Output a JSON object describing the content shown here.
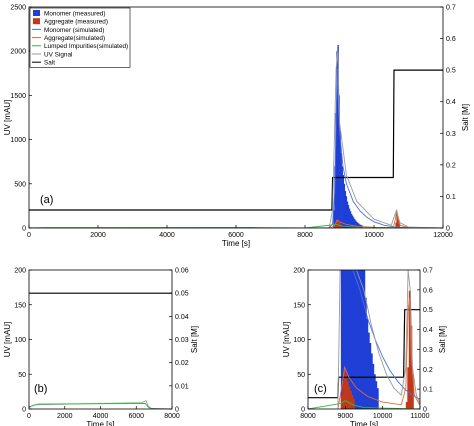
{
  "chart_data": [
    {
      "id": "a",
      "type": "line",
      "panel_label": "(a)",
      "xlabel": "Time [s]",
      "ylabel": "UV [mAU]",
      "y2label": "Salt [M]",
      "xlim": [
        0,
        12000
      ],
      "ylim": [
        0,
        2500
      ],
      "y2lim": [
        0,
        0.7
      ],
      "xticks": [
        0,
        2000,
        4000,
        6000,
        8000,
        10000,
        12000
      ],
      "yticks": [
        0,
        500,
        1000,
        1500,
        2000,
        2500
      ],
      "y2ticks": [
        0,
        0.1,
        0.2,
        0.3,
        0.4,
        0.5,
        0.6,
        0.7
      ],
      "legend": {
        "position": "top-left",
        "entries": [
          {
            "label": "Monomer (measured)",
            "color": "#1f3fd6",
            "style": "patch"
          },
          {
            "label": "Aggregate (measured)",
            "color": "#c0391b",
            "style": "patch"
          },
          {
            "label": "Monomer (simulated)",
            "color": "#4a6fe0",
            "style": "line"
          },
          {
            "label": "Aggregate(simulated)",
            "color": "#e06a3a",
            "style": "line"
          },
          {
            "label": "Lumped Impurities(simulated)",
            "color": "#39b54a",
            "style": "line"
          },
          {
            "label": "UV Signal",
            "color": "#9a9a9a",
            "style": "line"
          },
          {
            "label": "Salt",
            "color": "#000000",
            "style": "line"
          }
        ]
      },
      "bars_monomer": [
        [
          8820,
          200
        ],
        [
          8850,
          700
        ],
        [
          8880,
          1300
        ],
        [
          8910,
          2000
        ],
        [
          8940,
          2070
        ],
        [
          8970,
          1500
        ],
        [
          9000,
          1100
        ],
        [
          9030,
          850
        ],
        [
          9060,
          700
        ],
        [
          9090,
          600
        ],
        [
          9120,
          500
        ],
        [
          9150,
          420
        ],
        [
          9180,
          360
        ],
        [
          9210,
          300
        ],
        [
          9240,
          260
        ],
        [
          9270,
          220
        ],
        [
          9300,
          190
        ],
        [
          9330,
          160
        ],
        [
          9360,
          140
        ],
        [
          9390,
          120
        ],
        [
          9420,
          100
        ],
        [
          9450,
          85
        ],
        [
          9480,
          70
        ],
        [
          9510,
          60
        ],
        [
          9540,
          50
        ],
        [
          9570,
          40
        ],
        [
          9600,
          35
        ],
        [
          9630,
          30
        ]
      ],
      "bars_aggregate": [
        [
          8850,
          20
        ],
        [
          8880,
          50
        ],
        [
          8910,
          80
        ],
        [
          8940,
          90
        ],
        [
          8970,
          70
        ],
        [
          9000,
          50
        ],
        [
          9030,
          35
        ],
        [
          9060,
          25
        ],
        [
          10620,
          60
        ],
        [
          10650,
          170
        ],
        [
          10680,
          120
        ],
        [
          10710,
          50
        ]
      ],
      "series": [
        {
          "name": "Salt",
          "color": "#000000",
          "axis": "right",
          "points": [
            [
              0,
              0.057
            ],
            [
              8780,
              0.057
            ],
            [
              8800,
              0.16
            ],
            [
              10560,
              0.16
            ],
            [
              10580,
              0.5
            ],
            [
              12000,
              0.5
            ]
          ]
        },
        {
          "name": "Monomer (simulated)",
          "color": "#4a6fe0",
          "axis": "left",
          "points": [
            [
              8700,
              0
            ],
            [
              8800,
              50
            ],
            [
              8860,
              400
            ],
            [
              8900,
              1200
            ],
            [
              8930,
              1800
            ],
            [
              8960,
              1500
            ],
            [
              9000,
              1100
            ],
            [
              9100,
              700
            ],
            [
              9200,
              500
            ],
            [
              9400,
              300
            ],
            [
              9600,
              190
            ],
            [
              9800,
              120
            ],
            [
              10000,
              70
            ],
            [
              10300,
              30
            ],
            [
              10600,
              12
            ],
            [
              11000,
              3
            ],
            [
              12000,
              0
            ]
          ]
        },
        {
          "name": "Aggregate(simulated)",
          "color": "#e06a3a",
          "axis": "left",
          "points": [
            [
              8700,
              0
            ],
            [
              8850,
              20
            ],
            [
              8930,
              90
            ],
            [
              9000,
              70
            ],
            [
              9200,
              40
            ],
            [
              9500,
              20
            ],
            [
              10000,
              8
            ],
            [
              10560,
              5
            ],
            [
              10620,
              100
            ],
            [
              10660,
              200
            ],
            [
              10700,
              100
            ],
            [
              10760,
              30
            ],
            [
              11000,
              5
            ],
            [
              12000,
              0
            ]
          ]
        },
        {
          "name": "Lumped Impurities(simulated)",
          "color": "#39b54a",
          "axis": "left",
          "points": [
            [
              0,
              0
            ],
            [
              500,
              5
            ],
            [
              6500,
              6
            ],
            [
              6800,
              3
            ],
            [
              8000,
              0
            ],
            [
              8900,
              40
            ],
            [
              9100,
              20
            ],
            [
              9600,
              5
            ],
            [
              12000,
              0
            ]
          ]
        },
        {
          "name": "UV Signal",
          "color": "#9a9a9a",
          "axis": "left",
          "points": [
            [
              0,
              2
            ],
            [
              8700,
              2
            ],
            [
              8800,
              200
            ],
            [
              8900,
              1800
            ],
            [
              8950,
              2000
            ],
            [
              9000,
              1200
            ],
            [
              9200,
              600
            ],
            [
              9500,
              300
            ],
            [
              10000,
              100
            ],
            [
              10500,
              30
            ],
            [
              10650,
              200
            ],
            [
              10750,
              60
            ],
            [
              11000,
              10
            ],
            [
              12000,
              0
            ]
          ]
        }
      ]
    },
    {
      "id": "b",
      "type": "line",
      "panel_label": "(b)",
      "xlabel": "Time [s]",
      "ylabel": "UV [mAU]",
      "y2label": "Salt [M]",
      "xlim": [
        0,
        8000
      ],
      "ylim": [
        0,
        200
      ],
      "y2lim": [
        0,
        0.06
      ],
      "xticks": [
        0,
        2000,
        4000,
        6000,
        8000
      ],
      "yticks": [
        0,
        50,
        100,
        150,
        200
      ],
      "y2ticks": [
        0,
        0.01,
        0.02,
        0.03,
        0.04,
        0.05,
        0.06
      ],
      "series": [
        {
          "name": "Salt",
          "color": "#000000",
          "axis": "right",
          "points": [
            [
              0,
              0.05
            ],
            [
              8000,
              0.05
            ]
          ]
        },
        {
          "name": "UV Signal",
          "color": "#9a9a9a",
          "axis": "left",
          "points": [
            [
              0,
              2
            ],
            [
              300,
              6
            ],
            [
              6300,
              9
            ],
            [
              6550,
              12
            ],
            [
              6650,
              5
            ],
            [
              6800,
              1
            ],
            [
              8000,
              0
            ]
          ]
        },
        {
          "name": "Lumped Impurities(simulated)",
          "color": "#39b54a",
          "axis": "left",
          "points": [
            [
              0,
              3
            ],
            [
              500,
              7
            ],
            [
              6500,
              8
            ],
            [
              6700,
              2
            ],
            [
              7000,
              0
            ],
            [
              8000,
              0
            ]
          ]
        }
      ]
    },
    {
      "id": "c",
      "type": "line",
      "panel_label": "(c)",
      "xlabel": "Time [s]",
      "ylabel": "UV [mAU]",
      "y2label": "Salt [M]",
      "xlim": [
        8000,
        11000
      ],
      "ylim": [
        0,
        200
      ],
      "y2lim": [
        0,
        0.7
      ],
      "xticks": [
        8000,
        9000,
        10000,
        11000
      ],
      "yticks": [
        0,
        50,
        100,
        150,
        200
      ],
      "y2ticks": [
        0,
        0.1,
        0.2,
        0.3,
        0.4,
        0.5,
        0.6,
        0.7
      ],
      "bars_monomer": [
        [
          8880,
          200
        ],
        [
          8920,
          200
        ],
        [
          8960,
          200
        ],
        [
          9000,
          200
        ],
        [
          9040,
          200
        ],
        [
          9080,
          200
        ],
        [
          9120,
          200
        ],
        [
          9160,
          200
        ],
        [
          9200,
          200
        ],
        [
          9240,
          200
        ],
        [
          9280,
          200
        ],
        [
          9320,
          200
        ],
        [
          9360,
          200
        ],
        [
          9400,
          200
        ],
        [
          9440,
          200
        ],
        [
          9480,
          200
        ],
        [
          9520,
          160
        ],
        [
          9560,
          130
        ],
        [
          9600,
          110
        ],
        [
          9640,
          95
        ],
        [
          9680,
          80
        ],
        [
          9720,
          65
        ],
        [
          9760,
          50
        ],
        [
          9800,
          40
        ],
        [
          9840,
          30
        ]
      ],
      "bars_aggregate": [
        [
          8880,
          20
        ],
        [
          8920,
          40
        ],
        [
          8960,
          55
        ],
        [
          9000,
          50
        ],
        [
          9040,
          40
        ],
        [
          9080,
          32
        ],
        [
          9120,
          26
        ],
        [
          9160,
          20
        ],
        [
          9200,
          15
        ],
        [
          10620,
          10
        ],
        [
          10660,
          60
        ],
        [
          10700,
          170
        ],
        [
          10740,
          120
        ],
        [
          10780,
          50
        ]
      ],
      "series": [
        {
          "name": "Salt",
          "color": "#000000",
          "axis": "right",
          "points": [
            [
              8000,
              0.057
            ],
            [
              8800,
              0.057
            ],
            [
              8820,
              0.16
            ],
            [
              10560,
              0.16
            ],
            [
              10590,
              0.5
            ],
            [
              10800,
              0.5
            ],
            [
              11000,
              0.5
            ]
          ]
        },
        {
          "name": "Monomer (simulated)",
          "color": "#4a6fe0",
          "axis": "left",
          "points": [
            [
              8850,
              200
            ],
            [
              9000,
              200
            ],
            [
              9200,
              200
            ],
            [
              9400,
              170
            ],
            [
              9600,
              130
            ],
            [
              9800,
              100
            ],
            [
              10000,
              75
            ],
            [
              10200,
              55
            ],
            [
              10400,
              40
            ],
            [
              10600,
              28
            ],
            [
              10800,
              20
            ],
            [
              11000,
              14
            ]
          ]
        },
        {
          "name": "Aggregate(simulated)",
          "color": "#e06a3a",
          "axis": "left",
          "points": [
            [
              8800,
              0
            ],
            [
              8900,
              30
            ],
            [
              8980,
              60
            ],
            [
              9100,
              45
            ],
            [
              9300,
              30
            ],
            [
              9600,
              18
            ],
            [
              10000,
              10
            ],
            [
              10500,
              6
            ],
            [
              10620,
              30
            ],
            [
              10680,
              140
            ],
            [
              10720,
              160
            ],
            [
              10760,
              80
            ],
            [
              10850,
              20
            ],
            [
              11000,
              5
            ]
          ]
        },
        {
          "name": "Lumped Impurities(simulated)",
          "color": "#39b54a",
          "axis": "left",
          "points": [
            [
              8000,
              0
            ],
            [
              8880,
              8
            ],
            [
              9000,
              12
            ],
            [
              9200,
              6
            ],
            [
              9500,
              2
            ],
            [
              11000,
              0
            ]
          ]
        },
        {
          "name": "UV Signal",
          "color": "#9a9a9a",
          "axis": "left",
          "points": [
            [
              8800,
              0
            ],
            [
              8860,
              200
            ],
            [
              9300,
              200
            ],
            [
              9500,
              170
            ],
            [
              9700,
              120
            ],
            [
              9900,
              80
            ],
            [
              10100,
              50
            ],
            [
              10300,
              30
            ],
            [
              10500,
              20
            ],
            [
              10620,
              60
            ],
            [
              10680,
              200
            ],
            [
              10740,
              170
            ],
            [
              10800,
              60
            ],
            [
              10900,
              20
            ],
            [
              11000,
              8
            ]
          ]
        }
      ]
    }
  ]
}
